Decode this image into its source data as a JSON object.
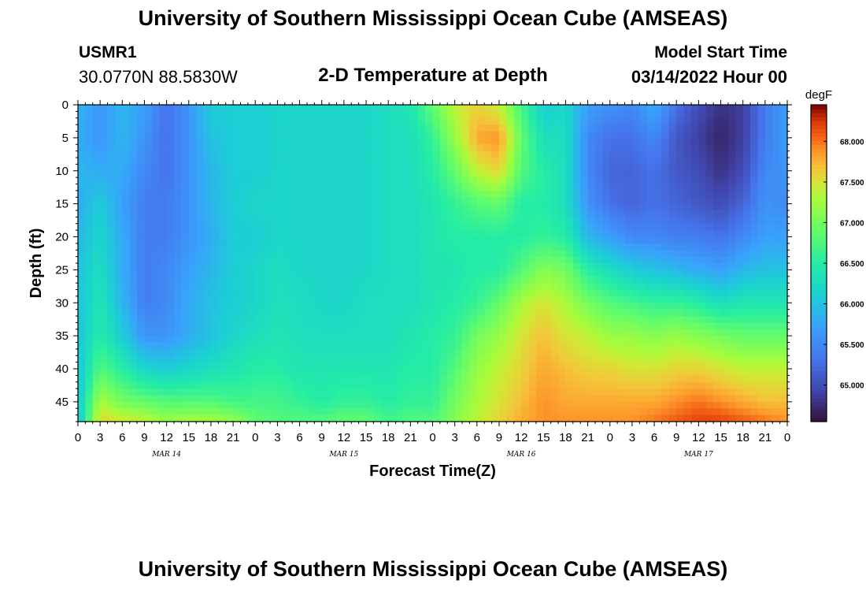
{
  "header": {
    "title": "University of Southern Mississippi Ocean Cube (AMSEAS)",
    "station_id": "USMR1",
    "coords": "30.0770N  88.5830W",
    "subtitle": "2-D Temperature at Depth",
    "start_label": "Model Start Time",
    "start_time": "03/14/2022 Hour 00"
  },
  "footer": {
    "title": "University of Southern Mississippi Ocean Cube (AMSEAS)"
  },
  "chart_data": {
    "type": "heatmap",
    "title": "2-D Temperature at Depth",
    "xlabel": "Forecast Time(Z)",
    "ylabel": "Depth (ft)",
    "x_range_hours": [
      0,
      96
    ],
    "x_tick_labels": [
      "0",
      "3",
      "6",
      "9",
      "12",
      "15",
      "18",
      "21",
      "0",
      "3",
      "6",
      "9",
      "12",
      "15",
      "18",
      "21",
      "0",
      "3",
      "6",
      "9",
      "12",
      "15",
      "18",
      "21",
      "0",
      "3",
      "6",
      "9",
      "12",
      "15",
      "18",
      "21",
      "0"
    ],
    "day_labels": [
      {
        "label": "MAR 14",
        "hour": 12
      },
      {
        "label": "MAR 15",
        "hour": 36
      },
      {
        "label": "MAR 16",
        "hour": 60
      },
      {
        "label": "MAR 17",
        "hour": 84
      }
    ],
    "y_range_ft": [
      0,
      48
    ],
    "y_ticks": [
      0,
      5,
      10,
      15,
      20,
      25,
      30,
      35,
      40,
      45
    ],
    "colorbar": {
      "unit": "degF",
      "min": 64.55,
      "max": 68.45,
      "ticks": [
        "65.000",
        "65.500",
        "66.000",
        "66.500",
        "67.000",
        "67.500",
        "68.000"
      ]
    },
    "temperature_degF": {
      "hours": [
        0,
        3,
        6,
        9,
        12,
        15,
        18,
        21,
        24,
        27,
        30,
        33,
        36,
        39,
        42,
        45,
        48,
        51,
        54,
        57,
        60,
        63,
        66,
        69,
        72,
        75,
        78,
        81,
        84,
        87,
        90,
        93,
        96
      ],
      "depths_ft": [
        0,
        5,
        10,
        15,
        20,
        25,
        30,
        35,
        40,
        45,
        48
      ],
      "values": [
        [
          65.9,
          65.8,
          65.9,
          65.8,
          65.9,
          66.0,
          66.0,
          66.0,
          66.0,
          66.0,
          66.0
        ],
        [
          65.6,
          65.6,
          65.8,
          66.1,
          66.2,
          66.3,
          66.4,
          66.5,
          66.8,
          67.3,
          67.6
        ],
        [
          65.9,
          65.9,
          65.8,
          65.7,
          65.8,
          65.8,
          65.9,
          66.1,
          66.5,
          67.0,
          67.5
        ],
        [
          65.7,
          65.6,
          65.5,
          65.4,
          65.4,
          65.4,
          65.4,
          65.6,
          66.2,
          66.9,
          67.4
        ],
        [
          65.3,
          65.3,
          65.3,
          65.4,
          65.4,
          65.5,
          65.5,
          65.6,
          66.1,
          66.8,
          67.2
        ],
        [
          65.6,
          65.6,
          65.6,
          65.6,
          65.6,
          65.7,
          65.8,
          65.8,
          66.2,
          66.8,
          67.3
        ],
        [
          66.1,
          66.0,
          65.9,
          65.9,
          65.8,
          65.9,
          66.0,
          66.0,
          66.3,
          66.8,
          67.3
        ],
        [
          66.1,
          66.1,
          66.1,
          66.1,
          66.1,
          66.1,
          66.1,
          66.2,
          66.4,
          66.7,
          67.2
        ],
        [
          66.1,
          66.1,
          66.1,
          66.2,
          66.1,
          66.2,
          66.2,
          66.3,
          66.5,
          66.7,
          66.9
        ],
        [
          66.2,
          66.2,
          66.2,
          66.2,
          66.2,
          66.3,
          66.3,
          66.4,
          66.5,
          66.7,
          66.8
        ],
        [
          66.2,
          66.2,
          66.2,
          66.2,
          66.2,
          66.2,
          66.3,
          66.3,
          66.4,
          66.6,
          66.8
        ],
        [
          66.2,
          66.2,
          66.2,
          66.2,
          66.2,
          66.2,
          66.2,
          66.3,
          66.4,
          66.5,
          66.8
        ],
        [
          66.2,
          66.2,
          66.2,
          66.2,
          66.2,
          66.2,
          66.2,
          66.3,
          66.4,
          66.6,
          66.9
        ],
        [
          66.2,
          66.2,
          66.2,
          66.2,
          66.2,
          66.2,
          66.3,
          66.3,
          66.4,
          66.6,
          66.9
        ],
        [
          66.3,
          66.3,
          66.3,
          66.3,
          66.3,
          66.3,
          66.3,
          66.3,
          66.4,
          66.5,
          66.7
        ],
        [
          66.4,
          66.3,
          66.3,
          66.3,
          66.3,
          66.3,
          66.3,
          66.4,
          66.5,
          66.6,
          66.8
        ],
        [
          66.9,
          66.6,
          66.5,
          66.4,
          66.4,
          66.4,
          66.4,
          66.5,
          66.5,
          66.6,
          66.8
        ],
        [
          67.4,
          67.2,
          66.9,
          66.6,
          66.5,
          66.4,
          66.5,
          66.6,
          66.8,
          67.0,
          67.1
        ],
        [
          67.6,
          67.8,
          67.4,
          66.8,
          66.5,
          66.5,
          66.6,
          67.0,
          67.2,
          67.3,
          67.4
        ],
        [
          67.4,
          67.9,
          67.6,
          66.9,
          66.5,
          66.5,
          66.9,
          67.2,
          67.4,
          67.5,
          67.6
        ],
        [
          66.7,
          66.9,
          66.8,
          66.5,
          66.5,
          66.8,
          67.3,
          67.5,
          67.6,
          67.7,
          67.8
        ],
        [
          66.1,
          66.3,
          66.5,
          66.5,
          66.6,
          67.1,
          67.5,
          67.7,
          67.8,
          67.9,
          67.9
        ],
        [
          66.2,
          66.3,
          66.3,
          66.3,
          66.5,
          67.0,
          67.3,
          67.5,
          67.7,
          67.8,
          67.9
        ],
        [
          65.7,
          65.5,
          65.5,
          65.6,
          65.9,
          66.5,
          67.0,
          67.4,
          67.6,
          67.8,
          67.9
        ],
        [
          65.6,
          65.3,
          65.2,
          65.3,
          65.7,
          66.3,
          66.8,
          67.2,
          67.6,
          67.8,
          67.9
        ],
        [
          65.5,
          65.3,
          65.2,
          65.2,
          65.5,
          66.1,
          66.7,
          67.2,
          67.5,
          67.8,
          67.9
        ],
        [
          65.8,
          65.5,
          65.3,
          65.3,
          65.5,
          66.0,
          66.6,
          67.1,
          67.5,
          67.8,
          68.0
        ],
        [
          65.3,
          65.1,
          65.1,
          65.2,
          65.4,
          65.9,
          66.6,
          67.2,
          67.6,
          67.9,
          68.1
        ],
        [
          65.0,
          64.9,
          65.0,
          65.1,
          65.4,
          65.8,
          66.5,
          67.1,
          67.6,
          68.0,
          68.2
        ],
        [
          64.8,
          64.7,
          64.8,
          65.0,
          65.3,
          65.7,
          66.3,
          67.0,
          67.5,
          67.9,
          68.2
        ],
        [
          64.9,
          64.9,
          65.0,
          65.2,
          65.5,
          65.9,
          66.4,
          66.9,
          67.4,
          67.8,
          68.1
        ],
        [
          65.4,
          65.4,
          65.5,
          65.6,
          65.7,
          66.0,
          66.4,
          66.9,
          67.4,
          67.7,
          68.0
        ],
        [
          65.7,
          65.7,
          65.6,
          65.5,
          65.7,
          66.0,
          66.4,
          66.9,
          67.4,
          67.7,
          67.9
        ]
      ]
    }
  }
}
